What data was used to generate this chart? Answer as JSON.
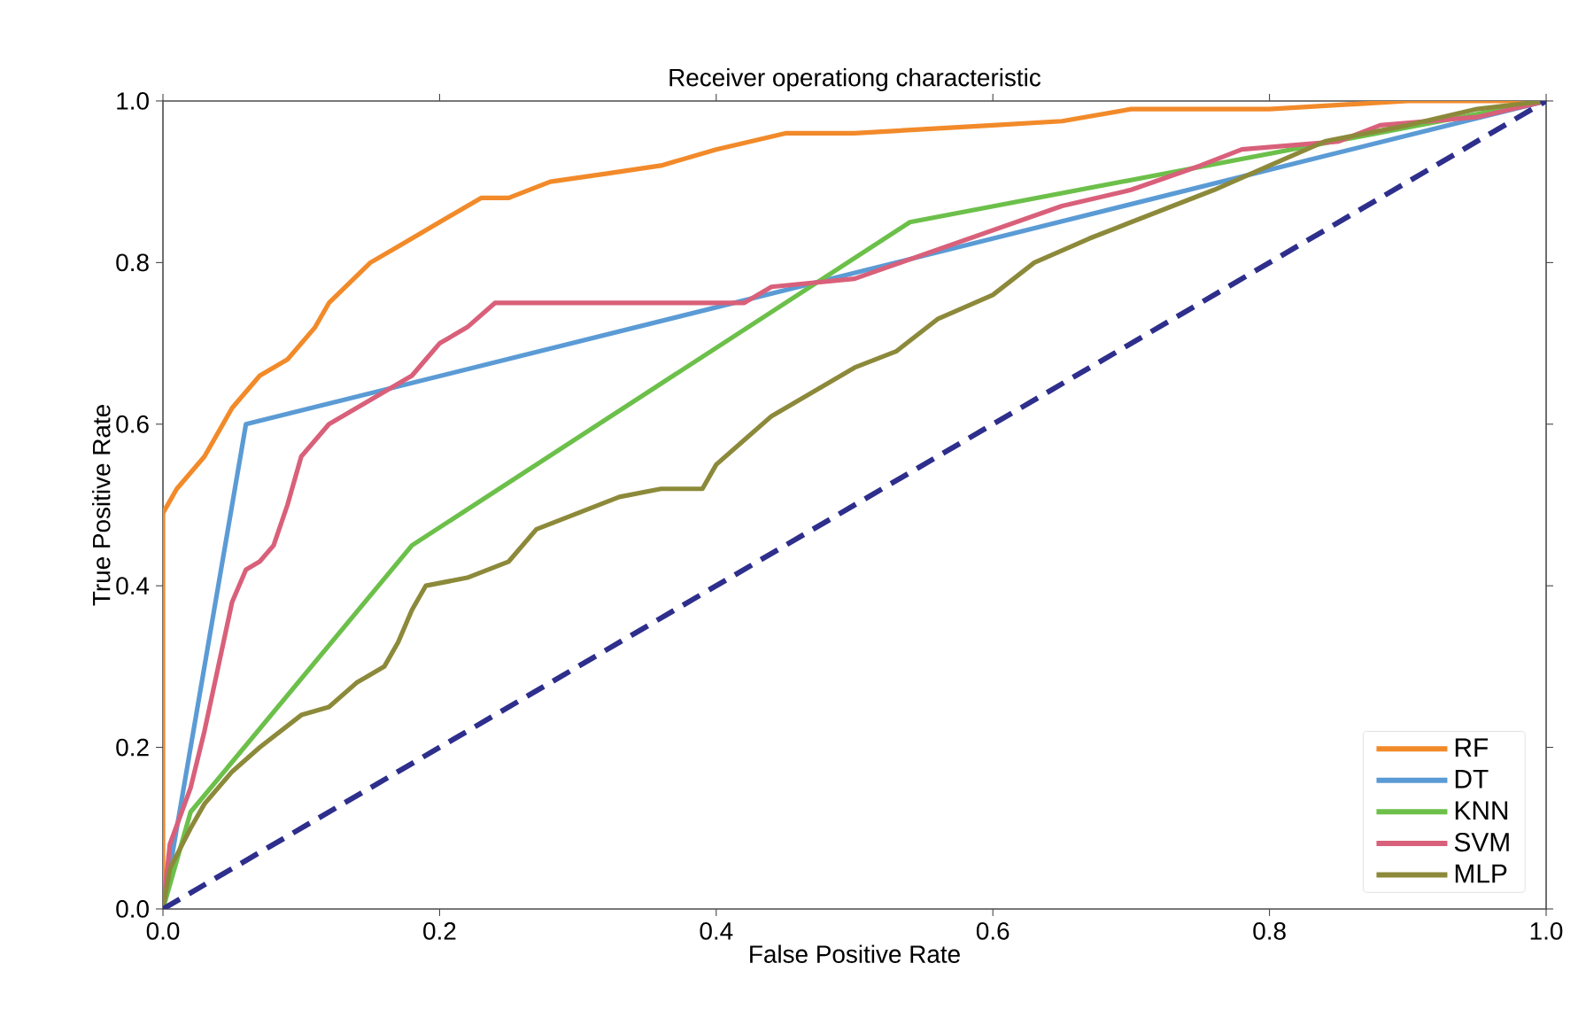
{
  "chart_data": {
    "type": "line",
    "title": "Receiver operationg characteristic",
    "xlabel": "False Positive Rate",
    "ylabel": "True Positive Rate",
    "xlim": [
      0,
      1
    ],
    "ylim": [
      0,
      1
    ],
    "xticks": [
      {
        "value": 0,
        "label": "0.0"
      },
      {
        "value": 0.2,
        "label": "0.2"
      },
      {
        "value": 0.4,
        "label": "0.4"
      },
      {
        "value": 0.6,
        "label": "0.6"
      },
      {
        "value": 0.8,
        "label": "0.8"
      },
      {
        "value": 1,
        "label": "1.0"
      }
    ],
    "yticks": [
      {
        "value": 0,
        "label": "0.0"
      },
      {
        "value": 0.2,
        "label": "0.2"
      },
      {
        "value": 0.4,
        "label": "0.4"
      },
      {
        "value": 0.6,
        "label": "0.6"
      },
      {
        "value": 0.8,
        "label": "0.8"
      },
      {
        "value": 1,
        "label": "1.0"
      }
    ],
    "legend": "bottom right",
    "grid": false,
    "marker": "none",
    "line_style": "solid",
    "series": [
      {
        "name": "RF",
        "color": "#f28a2a",
        "x": [
          0,
          0,
          0.01,
          0.03,
          0.05,
          0.07,
          0.09,
          0.11,
          0.12,
          0.15,
          0.17,
          0.2,
          0.23,
          0.25,
          0.28,
          0.32,
          0.36,
          0.4,
          0.45,
          0.5,
          0.6,
          0.65,
          0.7,
          0.8,
          0.9,
          1
        ],
        "values": [
          0,
          0.49,
          0.52,
          0.56,
          0.62,
          0.66,
          0.68,
          0.72,
          0.75,
          0.8,
          0.82,
          0.85,
          0.88,
          0.88,
          0.9,
          0.91,
          0.92,
          0.94,
          0.96,
          0.96,
          0.97,
          0.975,
          0.99,
          0.99,
          1,
          1
        ]
      },
      {
        "name": "DT",
        "color": "#5b9bd5",
        "x": [
          0,
          0.06,
          1
        ],
        "values": [
          0,
          0.6,
          1
        ]
      },
      {
        "name": "KNN",
        "color": "#6cc04a",
        "x": [
          0,
          0.02,
          0.18,
          0.54,
          1
        ],
        "values": [
          0,
          0.12,
          0.45,
          0.85,
          1
        ]
      },
      {
        "name": "SVM",
        "color": "#d9607a",
        "x": [
          0,
          0.005,
          0.02,
          0.03,
          0.04,
          0.05,
          0.06,
          0.07,
          0.08,
          0.09,
          0.1,
          0.11,
          0.12,
          0.14,
          0.16,
          0.18,
          0.19,
          0.2,
          0.22,
          0.24,
          0.42,
          0.44,
          0.5,
          0.55,
          0.6,
          0.65,
          0.7,
          0.75,
          0.78,
          0.85,
          0.88,
          0.95,
          1
        ],
        "values": [
          0,
          0.08,
          0.15,
          0.22,
          0.3,
          0.38,
          0.42,
          0.43,
          0.45,
          0.5,
          0.56,
          0.58,
          0.6,
          0.62,
          0.64,
          0.66,
          0.68,
          0.7,
          0.72,
          0.75,
          0.75,
          0.77,
          0.78,
          0.81,
          0.84,
          0.87,
          0.89,
          0.92,
          0.94,
          0.95,
          0.97,
          0.98,
          1
        ]
      },
      {
        "name": "MLP",
        "color": "#8c8a3a",
        "x": [
          0,
          0.005,
          0.02,
          0.03,
          0.05,
          0.07,
          0.1,
          0.12,
          0.14,
          0.16,
          0.17,
          0.18,
          0.19,
          0.22,
          0.25,
          0.27,
          0.3,
          0.33,
          0.36,
          0.39,
          0.4,
          0.42,
          0.44,
          0.47,
          0.5,
          0.53,
          0.56,
          0.6,
          0.63,
          0.67,
          0.7,
          0.73,
          0.76,
          0.8,
          0.84,
          0.9,
          0.95,
          1
        ],
        "values": [
          0,
          0.05,
          0.1,
          0.13,
          0.17,
          0.2,
          0.24,
          0.25,
          0.28,
          0.3,
          0.33,
          0.37,
          0.4,
          0.41,
          0.43,
          0.47,
          0.49,
          0.51,
          0.52,
          0.52,
          0.55,
          0.58,
          0.61,
          0.64,
          0.67,
          0.69,
          0.73,
          0.76,
          0.8,
          0.83,
          0.85,
          0.87,
          0.89,
          0.92,
          0.95,
          0.97,
          0.99,
          1
        ]
      },
      {
        "color": "#2e2e8c",
        "line_style": "dashed",
        "x": [
          0,
          1
        ],
        "values": [
          0,
          1
        ]
      }
    ]
  }
}
